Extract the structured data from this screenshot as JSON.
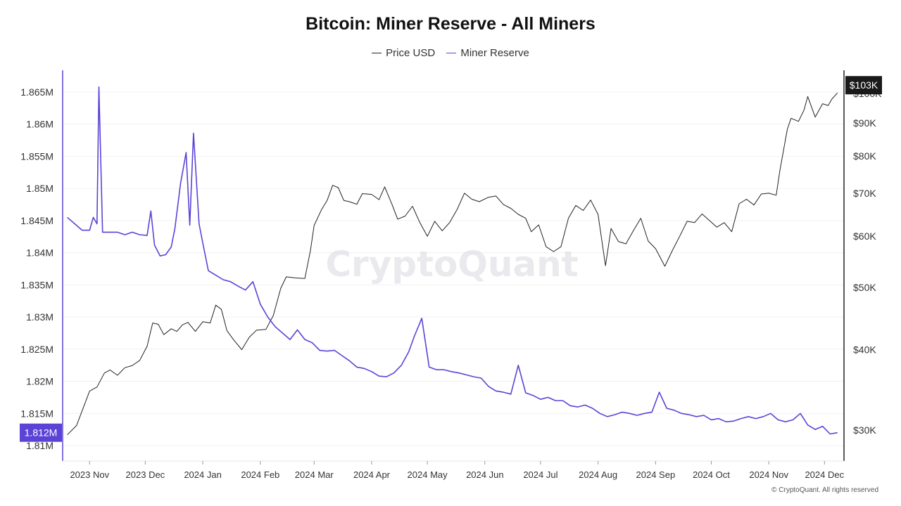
{
  "chart_data": {
    "type": "line",
    "title": "Bitcoin: Miner Reserve - All Miners",
    "legend_placement": "top-center",
    "grid": true,
    "x_tick_labels": [
      "2023 Nov",
      "2023 Dec",
      "2024 Jan",
      "2024 Feb",
      "2024 Mar",
      "2024 Apr",
      "2024 May",
      "2024 Jun",
      "2024 Jul",
      "2024 Aug",
      "2024 Sep",
      "2024 Oct",
      "2024 Nov",
      "2024 Dec"
    ],
    "left_axis": {
      "ticks": [
        "1.81M",
        "1.815M",
        "1.82M",
        "1.825M",
        "1.83M",
        "1.835M",
        "1.84M",
        "1.845M",
        "1.85M",
        "1.855M",
        "1.86M",
        "1.865M"
      ],
      "ylim": [
        1.8085,
        1.8675
      ],
      "current_badge": "1.812M"
    },
    "right_axis": {
      "scale": "log",
      "ticks": [
        "$30K",
        "$40K",
        "$50K",
        "$60K",
        "$70K",
        "$80K",
        "$90K",
        "$100K"
      ],
      "current_badge": "$103K"
    },
    "series": [
      {
        "name": "Price USD",
        "axis": "right",
        "color": "#222222",
        "x": [
          "2023-10-20",
          "2023-10-25",
          "2023-11-01",
          "2023-11-05",
          "2023-11-09",
          "2023-11-12",
          "2023-11-16",
          "2023-11-20",
          "2023-11-24",
          "2023-11-28",
          "2023-12-02",
          "2023-12-05",
          "2023-12-08",
          "2023-12-11",
          "2023-12-15",
          "2023-12-18",
          "2023-12-21",
          "2023-12-24",
          "2023-12-28",
          "2024-01-01",
          "2024-01-05",
          "2024-01-08",
          "2024-01-11",
          "2024-01-14",
          "2024-01-18",
          "2024-01-22",
          "2024-01-26",
          "2024-01-30",
          "2024-02-04",
          "2024-02-08",
          "2024-02-12",
          "2024-02-15",
          "2024-02-20",
          "2024-02-25",
          "2024-02-28",
          "2024-03-01",
          "2024-03-05",
          "2024-03-08",
          "2024-03-11",
          "2024-03-14",
          "2024-03-17",
          "2024-03-20",
          "2024-03-24",
          "2024-03-27",
          "2024-04-01",
          "2024-04-05",
          "2024-04-08",
          "2024-04-12",
          "2024-04-15",
          "2024-04-19",
          "2024-04-23",
          "2024-04-27",
          "2024-05-01",
          "2024-05-05",
          "2024-05-09",
          "2024-05-13",
          "2024-05-17",
          "2024-05-21",
          "2024-05-25",
          "2024-05-29",
          "2024-06-03",
          "2024-06-07",
          "2024-06-11",
          "2024-06-15",
          "2024-06-19",
          "2024-06-23",
          "2024-06-26",
          "2024-06-30",
          "2024-07-04",
          "2024-07-08",
          "2024-07-12",
          "2024-07-16",
          "2024-07-20",
          "2024-07-24",
          "2024-07-28",
          "2024-08-01",
          "2024-08-05",
          "2024-08-08",
          "2024-08-12",
          "2024-08-16",
          "2024-08-20",
          "2024-08-24",
          "2024-08-28",
          "2024-09-01",
          "2024-09-06",
          "2024-09-10",
          "2024-09-14",
          "2024-09-18",
          "2024-09-22",
          "2024-09-26",
          "2024-09-30",
          "2024-10-04",
          "2024-10-08",
          "2024-10-12",
          "2024-10-16",
          "2024-10-20",
          "2024-10-24",
          "2024-10-28",
          "2024-11-01",
          "2024-11-05",
          "2024-11-07",
          "2024-11-11",
          "2024-11-13",
          "2024-11-17",
          "2024-11-20",
          "2024-11-22",
          "2024-11-26",
          "2024-11-30",
          "2024-12-03",
          "2024-12-05",
          "2024-12-08"
        ],
        "values": [
          29500,
          30500,
          34500,
          35000,
          36800,
          37200,
          36500,
          37500,
          37800,
          38500,
          40500,
          44000,
          43800,
          42200,
          43100,
          42700,
          43700,
          44100,
          42700,
          44200,
          44000,
          46900,
          46200,
          42800,
          41300,
          40000,
          41800,
          42900,
          43000,
          45200,
          49800,
          51900,
          51700,
          51600,
          57000,
          62400,
          66000,
          68200,
          72000,
          71400,
          68200,
          67900,
          67300,
          69900,
          69700,
          68400,
          71600,
          67200,
          63800,
          64500,
          66800,
          63000,
          60000,
          63300,
          61200,
          63000,
          66000,
          70000,
          68500,
          67900,
          69000,
          69300,
          67200,
          66300,
          64900,
          64000,
          61000,
          62500,
          57800,
          56800,
          57800,
          64000,
          67000,
          65800,
          68300,
          64900,
          54000,
          61700,
          58900,
          58400,
          61200,
          64000,
          59000,
          57400,
          53900,
          57000,
          60000,
          63300,
          63000,
          65000,
          63500,
          62000,
          63000,
          61000,
          67400,
          68500,
          67100,
          69800,
          70000,
          69500,
          76000,
          88000,
          91500,
          90500,
          94300,
          98900,
          91900,
          96400,
          95800,
          98000,
          100200
        ]
      },
      {
        "name": "Miner Reserve",
        "axis": "left",
        "color": "#5b43d6",
        "x": [
          "2023-10-20",
          "2023-10-24",
          "2023-10-28",
          "2023-11-01",
          "2023-11-03",
          "2023-11-05",
          "2023-11-06",
          "2023-11-08",
          "2023-11-12",
          "2023-11-16",
          "2023-11-20",
          "2023-11-24",
          "2023-11-28",
          "2023-12-02",
          "2023-12-04",
          "2023-12-06",
          "2023-12-09",
          "2023-12-12",
          "2023-12-15",
          "2023-12-17",
          "2023-12-20",
          "2023-12-23",
          "2023-12-25",
          "2023-12-27",
          "2023-12-30",
          "2024-01-01",
          "2024-01-04",
          "2024-01-08",
          "2024-01-12",
          "2024-01-16",
          "2024-01-20",
          "2024-01-24",
          "2024-01-28",
          "2024-02-01",
          "2024-02-05",
          "2024-02-09",
          "2024-02-13",
          "2024-02-17",
          "2024-02-21",
          "2024-02-25",
          "2024-02-29",
          "2024-03-04",
          "2024-03-08",
          "2024-03-12",
          "2024-03-16",
          "2024-03-20",
          "2024-03-24",
          "2024-03-28",
          "2024-04-01",
          "2024-04-05",
          "2024-04-09",
          "2024-04-13",
          "2024-04-17",
          "2024-04-21",
          "2024-04-24",
          "2024-04-28",
          "2024-05-02",
          "2024-05-06",
          "2024-05-10",
          "2024-05-14",
          "2024-05-18",
          "2024-05-22",
          "2024-05-26",
          "2024-05-30",
          "2024-06-03",
          "2024-06-07",
          "2024-06-11",
          "2024-06-15",
          "2024-06-19",
          "2024-06-23",
          "2024-06-27",
          "2024-07-01",
          "2024-07-05",
          "2024-07-09",
          "2024-07-13",
          "2024-07-17",
          "2024-07-21",
          "2024-07-25",
          "2024-07-29",
          "2024-08-02",
          "2024-08-06",
          "2024-08-10",
          "2024-08-14",
          "2024-08-18",
          "2024-08-22",
          "2024-08-26",
          "2024-08-30",
          "2024-09-03",
          "2024-09-07",
          "2024-09-11",
          "2024-09-15",
          "2024-09-19",
          "2024-09-23",
          "2024-09-27",
          "2024-10-01",
          "2024-10-05",
          "2024-10-09",
          "2024-10-13",
          "2024-10-17",
          "2024-10-21",
          "2024-10-25",
          "2024-10-29",
          "2024-11-02",
          "2024-11-06",
          "2024-11-10",
          "2024-11-14",
          "2024-11-18",
          "2024-11-22",
          "2024-11-26",
          "2024-11-30",
          "2024-12-04",
          "2024-12-08"
        ],
        "values": [
          1.8455,
          1.8445,
          1.8435,
          1.8435,
          1.8455,
          1.8445,
          1.8658,
          1.8432,
          1.8432,
          1.8432,
          1.8428,
          1.8432,
          1.8428,
          1.8427,
          1.8465,
          1.8412,
          1.8395,
          1.8397,
          1.8409,
          1.8438,
          1.8508,
          1.8556,
          1.8443,
          1.8586,
          1.8445,
          1.8415,
          1.8372,
          1.8365,
          1.8358,
          1.8355,
          1.8348,
          1.8342,
          1.8355,
          1.832,
          1.83,
          1.8285,
          1.8275,
          1.8265,
          1.828,
          1.8265,
          1.826,
          1.8248,
          1.8247,
          1.8248,
          1.824,
          1.8232,
          1.8222,
          1.822,
          1.8215,
          1.8208,
          1.8207,
          1.8213,
          1.8225,
          1.8246,
          1.827,
          1.8298,
          1.8222,
          1.8218,
          1.8218,
          1.8215,
          1.8213,
          1.821,
          1.8207,
          1.8205,
          1.8192,
          1.8185,
          1.8183,
          1.818,
          1.8225,
          1.8182,
          1.8178,
          1.8172,
          1.8175,
          1.817,
          1.817,
          1.8162,
          1.816,
          1.8163,
          1.8158,
          1.815,
          1.8145,
          1.8148,
          1.8152,
          1.815,
          1.8147,
          1.815,
          1.8152,
          1.8183,
          1.8158,
          1.8155,
          1.815,
          1.8148,
          1.8145,
          1.8147,
          1.814,
          1.8142,
          1.8137,
          1.8138,
          1.8142,
          1.8145,
          1.8142,
          1.8145,
          1.815,
          1.814,
          1.8137,
          1.814,
          1.815,
          1.8132,
          1.8125,
          1.813,
          1.8118,
          1.812
        ]
      }
    ]
  },
  "watermark": "CryptoQuant",
  "copyright": "© CryptoQuant. All rights reserved"
}
